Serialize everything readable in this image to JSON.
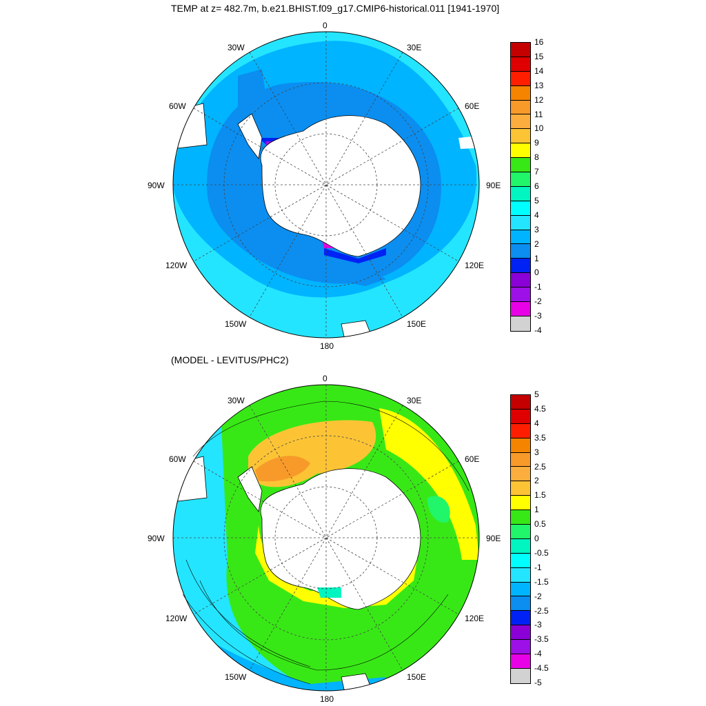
{
  "panels": [
    {
      "title": "TEMP at z= 482.7m, b.e21.BHIST.f09_g17.CMIP6-historical.011 [1941-1970]",
      "longitude_labels": [
        "0",
        "30E",
        "60E",
        "90E",
        "120E",
        "150E",
        "180",
        "150W",
        "120W",
        "90W",
        "60W",
        "30W"
      ],
      "colorbar": {
        "levels": [
          "16",
          "15",
          "14",
          "13",
          "12",
          "11",
          "10",
          "9",
          "8",
          "7",
          "6",
          "5",
          "4",
          "3",
          "2",
          "1",
          "0",
          "-1",
          "-2",
          "-3",
          "-4"
        ],
        "colors": [
          "#c40000",
          "#e00000",
          "#ff1f00",
          "#f58400",
          "#f89a2a",
          "#fbae3d",
          "#fcc435",
          "#ffff00",
          "#38e816",
          "#21f56a",
          "#00f5c0",
          "#00ffff",
          "#24e5ff",
          "#00b4ff",
          "#0b8ef0",
          "#0022f5",
          "#8a00d6",
          "#9e10e8",
          "#e800e6",
          "#d2d2d2",
          "#707070"
        ]
      }
    },
    {
      "title": "(MODEL - LEVITUS/PHC2)",
      "longitude_labels": [
        "0",
        "30E",
        "60E",
        "90E",
        "120E",
        "150E",
        "180",
        "150W",
        "120W",
        "90W",
        "60W",
        "30W"
      ],
      "colorbar": {
        "levels": [
          "5",
          "4.5",
          "4",
          "3.5",
          "3",
          "2.5",
          "2",
          "1.5",
          "1",
          "0.5",
          "0",
          "-0.5",
          "-1",
          "-1.5",
          "-2",
          "-2.5",
          "-3",
          "-3.5",
          "-4",
          "-4.5",
          "-5"
        ],
        "colors": [
          "#c40000",
          "#e00000",
          "#ff1f00",
          "#f58400",
          "#f89a2a",
          "#fbae3d",
          "#fcc435",
          "#ffff00",
          "#38e816",
          "#21f56a",
          "#00f5c0",
          "#00ffff",
          "#24e5ff",
          "#00b4ff",
          "#0b8ef0",
          "#0022f5",
          "#8a00d6",
          "#9e10e8",
          "#e800e6",
          "#d2d2d2",
          "#707070"
        ]
      }
    }
  ]
}
